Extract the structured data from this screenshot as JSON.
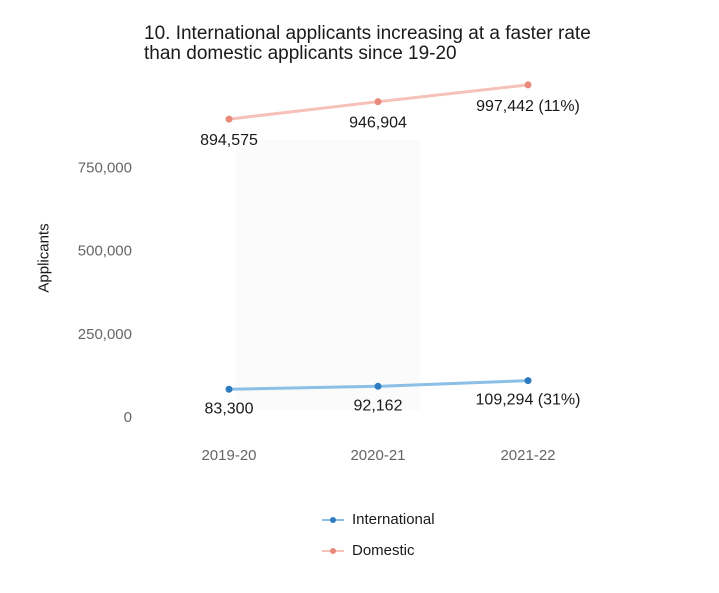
{
  "chart_data": {
    "type": "line",
    "title_lines": [
      "10. International applicants increasing at a faster rate",
      "than domestic applicants since 19-20"
    ],
    "ylabel": "Applicants",
    "xlabel": "",
    "categories": [
      "2019-20",
      "2020-21",
      "2021-22"
    ],
    "ylim": [
      0,
      1000000
    ],
    "yticks": [
      0,
      250000,
      500000,
      750000
    ],
    "ytick_labels": [
      "0",
      "250,000",
      "500,000",
      "750,000"
    ],
    "grid": false,
    "legend_position": "bottom",
    "series": [
      {
        "name": "International",
        "color": "#2f7bbf",
        "line_color": "#8cbfe6",
        "values": [
          83300,
          92162,
          109294
        ],
        "labels": [
          "83,300",
          "92,162",
          "109,294 (31%)"
        ]
      },
      {
        "name": "Domestic",
        "color": "#e8897a",
        "line_color": "#f5c1b8",
        "values": [
          894575,
          946904,
          997442
        ],
        "labels": [
          "894,575",
          "946,904",
          "997,442 (11%)"
        ]
      }
    ]
  }
}
